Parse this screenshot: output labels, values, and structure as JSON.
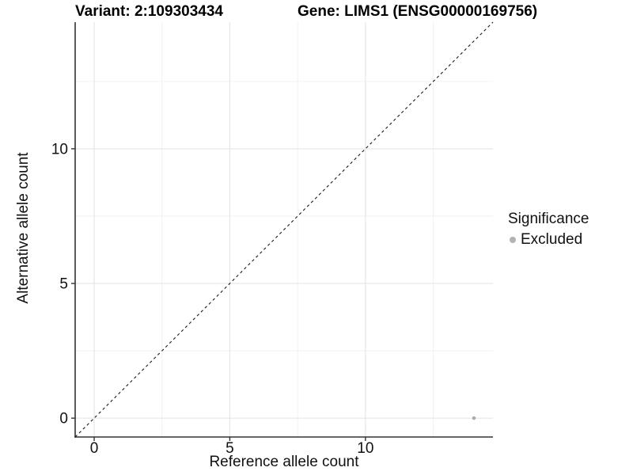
{
  "titles": {
    "variant": "Variant: 2:109303434",
    "gene": "Gene: LIMS1 (ENSG00000169756)"
  },
  "legend": {
    "title": "Significance",
    "items": [
      {
        "label": "Excluded",
        "color": "#b3b3b3"
      }
    ]
  },
  "chart_data": {
    "type": "scatter",
    "title": "Variant: 2:109303434 — Gene: LIMS1 (ENSG00000169756)",
    "xlabel": "Reference allele count",
    "ylabel": "Alternative allele count",
    "xlim": [
      -0.7,
      14.7
    ],
    "ylim": [
      -0.7,
      14.7
    ],
    "x_ticks": [
      0,
      5,
      10
    ],
    "y_ticks": [
      0,
      5,
      10
    ],
    "x_minor_ticks": [
      2.5,
      7.5,
      12.5
    ],
    "y_minor_ticks": [
      2.5,
      7.5,
      12.5
    ],
    "grid": true,
    "legend_position": "right",
    "series": [
      {
        "name": "Excluded",
        "color": "#ababab",
        "points": [
          {
            "x": 14,
            "y": 0
          }
        ]
      }
    ],
    "reference_line": {
      "kind": "identity",
      "equation": "y = x",
      "style": "dashed",
      "color": "#1a1a1a"
    },
    "colors": {
      "grid_major": "#e6e6e6",
      "grid_minor": "#f2f2f2",
      "axis_line": "#333333",
      "tick": "#333333",
      "tick_label": "#111111"
    }
  }
}
